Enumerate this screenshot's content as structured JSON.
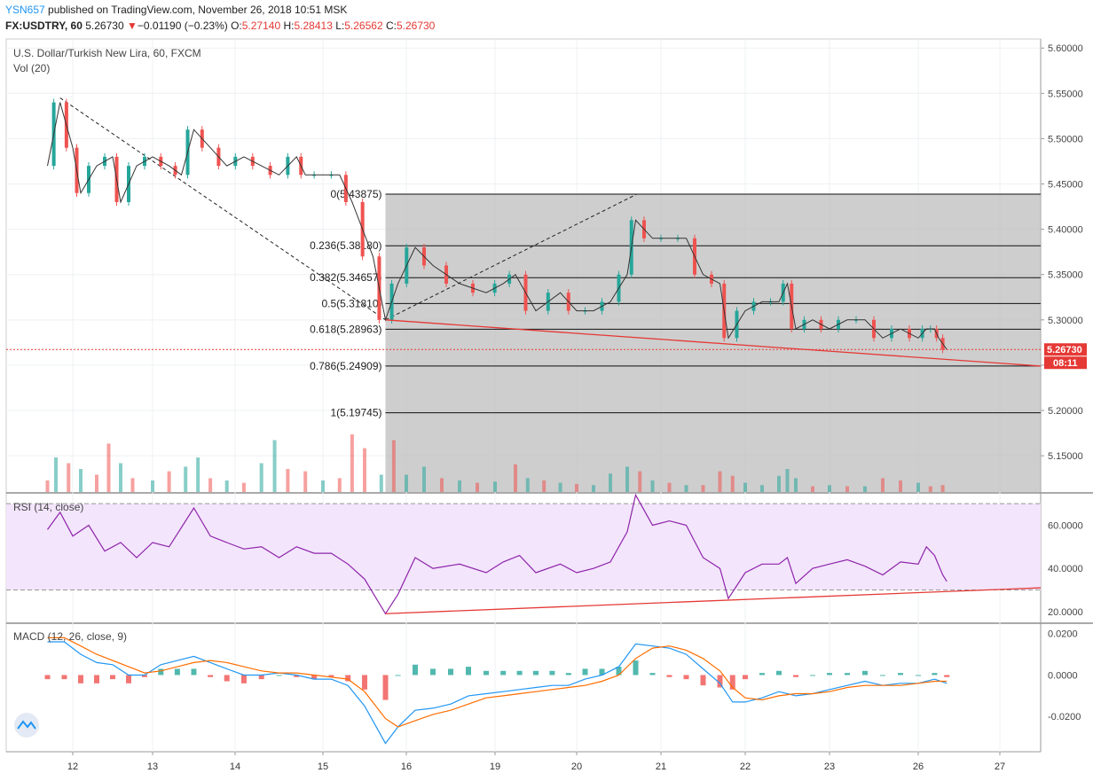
{
  "header": {
    "author": "YSN657",
    "published_text": " published on TradingView.com, November 26, 2018 10:51 MSK",
    "symbol": "FX:USDTRY, 60",
    "last": "5.26730",
    "change_arrow": "▼",
    "change": "−0.01190 (−0.23%)",
    "o_label": "O:",
    "o_value": "5.27140",
    "h_label": "H:",
    "h_value": "5.28413",
    "l_label": "L:",
    "l_value": "5.26562",
    "c_label": "C:",
    "c_value": "5.26730"
  },
  "legend": {
    "main_title": "U.S. Dollar/Turkish New Lira, 60, FXCM",
    "vol_label": "Vol (20)",
    "rsi_label": "RSI (14, close)",
    "macd_label": "MACD (12, 26, close, 9)"
  },
  "price_tag": {
    "value": "5.26730",
    "countdown": "08:11"
  },
  "colors": {
    "up": "#26a69a",
    "down": "#ef5350",
    "trend": "#e53935",
    "rsi": "#8e24aa",
    "macd": "#2196f3",
    "signal": "#ff6d00",
    "fib_fill": "#bdbdbd",
    "rsi_band": "#f3e5fc"
  },
  "chart_data": {
    "type": "candlestick",
    "x_ticks": [
      "12",
      "13",
      "14",
      "15",
      "16",
      "19",
      "20",
      "21",
      "22",
      "23",
      "26",
      "27"
    ],
    "price_ticks": [
      "5.60000",
      "5.55000",
      "5.50000",
      "5.45000",
      "5.40000",
      "5.35000",
      "5.30000",
      "5.25000",
      "5.20000",
      "5.15000"
    ],
    "price_ylim": [
      5.11,
      5.61
    ],
    "fib_levels": [
      {
        "label": "0(5.43875)",
        "value": 5.43875
      },
      {
        "label": "0.236(5.38180)",
        "value": 5.3818
      },
      {
        "label": "0.382(5.34657)",
        "value": 5.34657
      },
      {
        "label": "0.5(5.31810)",
        "value": 5.3181
      },
      {
        "label": "0.618(5.28963)",
        "value": 5.28963
      },
      {
        "label": "0.786(5.24909)",
        "value": 5.24909
      },
      {
        "label": "1(5.19745)",
        "value": 5.19745
      }
    ],
    "price_path": [
      [
        11.7,
        5.47
      ],
      [
        11.85,
        5.54
      ],
      [
        12.0,
        5.49
      ],
      [
        12.1,
        5.44
      ],
      [
        12.3,
        5.47
      ],
      [
        12.5,
        5.48
      ],
      [
        12.6,
        5.43
      ],
      [
        12.8,
        5.47
      ],
      [
        13.0,
        5.48
      ],
      [
        13.2,
        5.47
      ],
      [
        13.35,
        5.46
      ],
      [
        13.5,
        5.51
      ],
      [
        13.7,
        5.49
      ],
      [
        13.9,
        5.47
      ],
      [
        14.1,
        5.48
      ],
      [
        14.3,
        5.47
      ],
      [
        14.5,
        5.46
      ],
      [
        14.7,
        5.48
      ],
      [
        14.8,
        5.46
      ],
      [
        15.0,
        5.46
      ],
      [
        15.2,
        5.46
      ],
      [
        15.35,
        5.43
      ],
      [
        15.6,
        5.37
      ],
      [
        15.75,
        5.3
      ],
      [
        15.9,
        5.34
      ],
      [
        16.1,
        5.38
      ],
      [
        16.3,
        5.36
      ],
      [
        16.6,
        5.34
      ],
      [
        16.9,
        5.33
      ],
      [
        17.1,
        5.34
      ],
      [
        17.25,
        5.35
      ],
      [
        17.5,
        5.31
      ],
      [
        17.8,
        5.33
      ],
      [
        18.0,
        5.31
      ],
      [
        18.2,
        5.31
      ],
      [
        18.4,
        5.32
      ],
      [
        18.6,
        5.35
      ],
      [
        18.7,
        5.41
      ],
      [
        18.9,
        5.39
      ],
      [
        19.1,
        5.39
      ],
      [
        19.3,
        5.39
      ],
      [
        19.5,
        5.35
      ],
      [
        19.7,
        5.34
      ],
      [
        19.8,
        5.28
      ],
      [
        20.0,
        5.31
      ],
      [
        20.2,
        5.32
      ],
      [
        20.4,
        5.32
      ],
      [
        20.5,
        5.34
      ],
      [
        20.6,
        5.29
      ],
      [
        20.8,
        5.3
      ],
      [
        21.0,
        5.29
      ],
      [
        21.2,
        5.3
      ],
      [
        21.4,
        5.3
      ],
      [
        21.6,
        5.28
      ],
      [
        21.8,
        5.29
      ],
      [
        22.0,
        5.28
      ],
      [
        22.1,
        5.29
      ],
      [
        22.2,
        5.29
      ],
      [
        22.25,
        5.28
      ],
      [
        22.35,
        5.2673
      ]
    ],
    "volume_range": [
      0,
      100
    ],
    "volume": [
      [
        11.7,
        10,
        0
      ],
      [
        11.8,
        30,
        1
      ],
      [
        11.95,
        25,
        0
      ],
      [
        12.1,
        20,
        1
      ],
      [
        12.3,
        15,
        0
      ],
      [
        12.45,
        42,
        0
      ],
      [
        12.6,
        25,
        1
      ],
      [
        12.75,
        12,
        0
      ],
      [
        13.0,
        10,
        1
      ],
      [
        13.2,
        18,
        0
      ],
      [
        13.4,
        22,
        1
      ],
      [
        13.55,
        30,
        1
      ],
      [
        13.7,
        12,
        0
      ],
      [
        13.9,
        10,
        1
      ],
      [
        14.1,
        8,
        0
      ],
      [
        14.3,
        25,
        1
      ],
      [
        14.45,
        45,
        1
      ],
      [
        14.6,
        20,
        0
      ],
      [
        14.8,
        18,
        0
      ],
      [
        15.0,
        10,
        1
      ],
      [
        15.2,
        12,
        0
      ],
      [
        15.35,
        50,
        0
      ],
      [
        15.5,
        38,
        0
      ],
      [
        15.7,
        15,
        1
      ],
      [
        15.85,
        45,
        0
      ],
      [
        16.0,
        15,
        1
      ],
      [
        16.2,
        22,
        1
      ],
      [
        16.4,
        12,
        0
      ],
      [
        16.6,
        10,
        1
      ],
      [
        16.8,
        8,
        0
      ],
      [
        17.0,
        9,
        1
      ],
      [
        17.25,
        24,
        0
      ],
      [
        17.4,
        12,
        1
      ],
      [
        17.6,
        10,
        0
      ],
      [
        17.8,
        8,
        1
      ],
      [
        18.0,
        7,
        0
      ],
      [
        18.2,
        6,
        1
      ],
      [
        18.4,
        16,
        1
      ],
      [
        18.6,
        22,
        1
      ],
      [
        18.75,
        18,
        0
      ],
      [
        18.9,
        10,
        1
      ],
      [
        19.1,
        8,
        0
      ],
      [
        19.3,
        6,
        1
      ],
      [
        19.5,
        6,
        0
      ],
      [
        19.7,
        18,
        0
      ],
      [
        19.85,
        14,
        0
      ],
      [
        20.0,
        8,
        1
      ],
      [
        20.2,
        6,
        1
      ],
      [
        20.4,
        14,
        1
      ],
      [
        20.5,
        20,
        1
      ],
      [
        20.6,
        12,
        1
      ],
      [
        20.8,
        5,
        0
      ],
      [
        21.0,
        6,
        1
      ],
      [
        21.2,
        5,
        0
      ],
      [
        21.4,
        5,
        1
      ],
      [
        21.6,
        12,
        0
      ],
      [
        21.8,
        10,
        0
      ],
      [
        22.0,
        8,
        1
      ],
      [
        22.15,
        5,
        0
      ],
      [
        22.3,
        6,
        0
      ]
    ],
    "rsi_ticks": [
      "60.0000",
      "40.0000",
      "20.0000"
    ],
    "rsi_band": [
      30,
      70
    ],
    "rsi_ylim": [
      15,
      75
    ],
    "rsi": [
      [
        11.7,
        58
      ],
      [
        11.85,
        66
      ],
      [
        12.0,
        55
      ],
      [
        12.2,
        60
      ],
      [
        12.4,
        48
      ],
      [
        12.6,
        52
      ],
      [
        12.8,
        45
      ],
      [
        13.0,
        52
      ],
      [
        13.2,
        50
      ],
      [
        13.5,
        68
      ],
      [
        13.7,
        55
      ],
      [
        13.9,
        52
      ],
      [
        14.1,
        49
      ],
      [
        14.3,
        50
      ],
      [
        14.5,
        45
      ],
      [
        14.7,
        50
      ],
      [
        14.9,
        47
      ],
      [
        15.1,
        47
      ],
      [
        15.3,
        42
      ],
      [
        15.5,
        35
      ],
      [
        15.75,
        19
      ],
      [
        15.9,
        28
      ],
      [
        16.1,
        45
      ],
      [
        16.3,
        40
      ],
      [
        16.6,
        42
      ],
      [
        16.9,
        38
      ],
      [
        17.1,
        43
      ],
      [
        17.3,
        46
      ],
      [
        17.5,
        38
      ],
      [
        17.8,
        42
      ],
      [
        18.0,
        38
      ],
      [
        18.2,
        40
      ],
      [
        18.4,
        43
      ],
      [
        18.6,
        57
      ],
      [
        18.7,
        74
      ],
      [
        18.9,
        60
      ],
      [
        19.1,
        62
      ],
      [
        19.3,
        60
      ],
      [
        19.5,
        45
      ],
      [
        19.7,
        40
      ],
      [
        19.8,
        26
      ],
      [
        20.0,
        38
      ],
      [
        20.2,
        42
      ],
      [
        20.4,
        42
      ],
      [
        20.5,
        45
      ],
      [
        20.6,
        33
      ],
      [
        20.8,
        40
      ],
      [
        21.0,
        42
      ],
      [
        21.2,
        44
      ],
      [
        21.4,
        41
      ],
      [
        21.6,
        37
      ],
      [
        21.8,
        43
      ],
      [
        22.0,
        42
      ],
      [
        22.1,
        50
      ],
      [
        22.2,
        46
      ],
      [
        22.3,
        37
      ],
      [
        22.35,
        34
      ]
    ],
    "macd_ticks": [
      "0.0200",
      "0.0000",
      "-0.0200"
    ],
    "macd_ylim": [
      -0.037,
      0.025
    ],
    "macd": [
      [
        11.7,
        0.016
      ],
      [
        11.9,
        0.016
      ],
      [
        12.1,
        0.01
      ],
      [
        12.3,
        0.006
      ],
      [
        12.5,
        0.005
      ],
      [
        12.7,
        0.0
      ],
      [
        12.9,
        0.0
      ],
      [
        13.1,
        0.005
      ],
      [
        13.3,
        0.007
      ],
      [
        13.5,
        0.009
      ],
      [
        13.7,
        0.006
      ],
      [
        13.9,
        0.003
      ],
      [
        14.1,
        0.0
      ],
      [
        14.3,
        0.0
      ],
      [
        14.5,
        0.001
      ],
      [
        14.7,
        0.0
      ],
      [
        14.9,
        -0.002
      ],
      [
        15.1,
        -0.002
      ],
      [
        15.3,
        -0.005
      ],
      [
        15.5,
        -0.015
      ],
      [
        15.75,
        -0.033
      ],
      [
        15.9,
        -0.025
      ],
      [
        16.1,
        -0.017
      ],
      [
        16.3,
        -0.016
      ],
      [
        16.5,
        -0.014
      ],
      [
        16.7,
        -0.01
      ],
      [
        16.9,
        -0.009
      ],
      [
        17.1,
        -0.008
      ],
      [
        17.3,
        -0.007
      ],
      [
        17.5,
        -0.006
      ],
      [
        17.7,
        -0.005
      ],
      [
        17.9,
        -0.005
      ],
      [
        18.1,
        -0.002
      ],
      [
        18.3,
        0.0
      ],
      [
        18.5,
        0.004
      ],
      [
        18.7,
        0.015
      ],
      [
        18.9,
        0.014
      ],
      [
        19.1,
        0.013
      ],
      [
        19.3,
        0.01
      ],
      [
        19.5,
        0.003
      ],
      [
        19.7,
        -0.004
      ],
      [
        19.85,
        -0.013
      ],
      [
        20.0,
        -0.013
      ],
      [
        20.2,
        -0.011
      ],
      [
        20.4,
        -0.008
      ],
      [
        20.6,
        -0.01
      ],
      [
        20.8,
        -0.009
      ],
      [
        21.0,
        -0.007
      ],
      [
        21.2,
        -0.005
      ],
      [
        21.4,
        -0.003
      ],
      [
        21.6,
        -0.005
      ],
      [
        21.8,
        -0.004
      ],
      [
        22.0,
        -0.004
      ],
      [
        22.2,
        -0.002
      ],
      [
        22.35,
        -0.004
      ]
    ],
    "macd_signal": [
      [
        11.7,
        0.018
      ],
      [
        11.9,
        0.018
      ],
      [
        12.1,
        0.014
      ],
      [
        12.3,
        0.01
      ],
      [
        12.5,
        0.007
      ],
      [
        12.7,
        0.004
      ],
      [
        12.9,
        0.001
      ],
      [
        13.1,
        0.002
      ],
      [
        13.3,
        0.004
      ],
      [
        13.5,
        0.006
      ],
      [
        13.7,
        0.007
      ],
      [
        13.9,
        0.006
      ],
      [
        14.1,
        0.004
      ],
      [
        14.3,
        0.002
      ],
      [
        14.5,
        0.001
      ],
      [
        14.7,
        0.001
      ],
      [
        14.9,
        0.0
      ],
      [
        15.1,
        -0.001
      ],
      [
        15.3,
        -0.002
      ],
      [
        15.5,
        -0.008
      ],
      [
        15.75,
        -0.021
      ],
      [
        15.9,
        -0.025
      ],
      [
        16.1,
        -0.022
      ],
      [
        16.3,
        -0.019
      ],
      [
        16.5,
        -0.017
      ],
      [
        16.7,
        -0.014
      ],
      [
        16.9,
        -0.011
      ],
      [
        17.1,
        -0.01
      ],
      [
        17.3,
        -0.009
      ],
      [
        17.5,
        -0.008
      ],
      [
        17.7,
        -0.007
      ],
      [
        17.9,
        -0.006
      ],
      [
        18.1,
        -0.005
      ],
      [
        18.3,
        -0.003
      ],
      [
        18.5,
        0.0
      ],
      [
        18.7,
        0.008
      ],
      [
        18.9,
        0.013
      ],
      [
        19.1,
        0.014
      ],
      [
        19.3,
        0.012
      ],
      [
        19.5,
        0.008
      ],
      [
        19.7,
        0.002
      ],
      [
        19.85,
        -0.006
      ],
      [
        20.0,
        -0.011
      ],
      [
        20.2,
        -0.012
      ],
      [
        20.4,
        -0.01
      ],
      [
        20.6,
        -0.009
      ],
      [
        20.8,
        -0.009
      ],
      [
        21.0,
        -0.008
      ],
      [
        21.2,
        -0.006
      ],
      [
        21.4,
        -0.005
      ],
      [
        21.6,
        -0.005
      ],
      [
        21.8,
        -0.005
      ],
      [
        22.0,
        -0.004
      ],
      [
        22.2,
        -0.003
      ],
      [
        22.35,
        -0.003
      ]
    ]
  }
}
